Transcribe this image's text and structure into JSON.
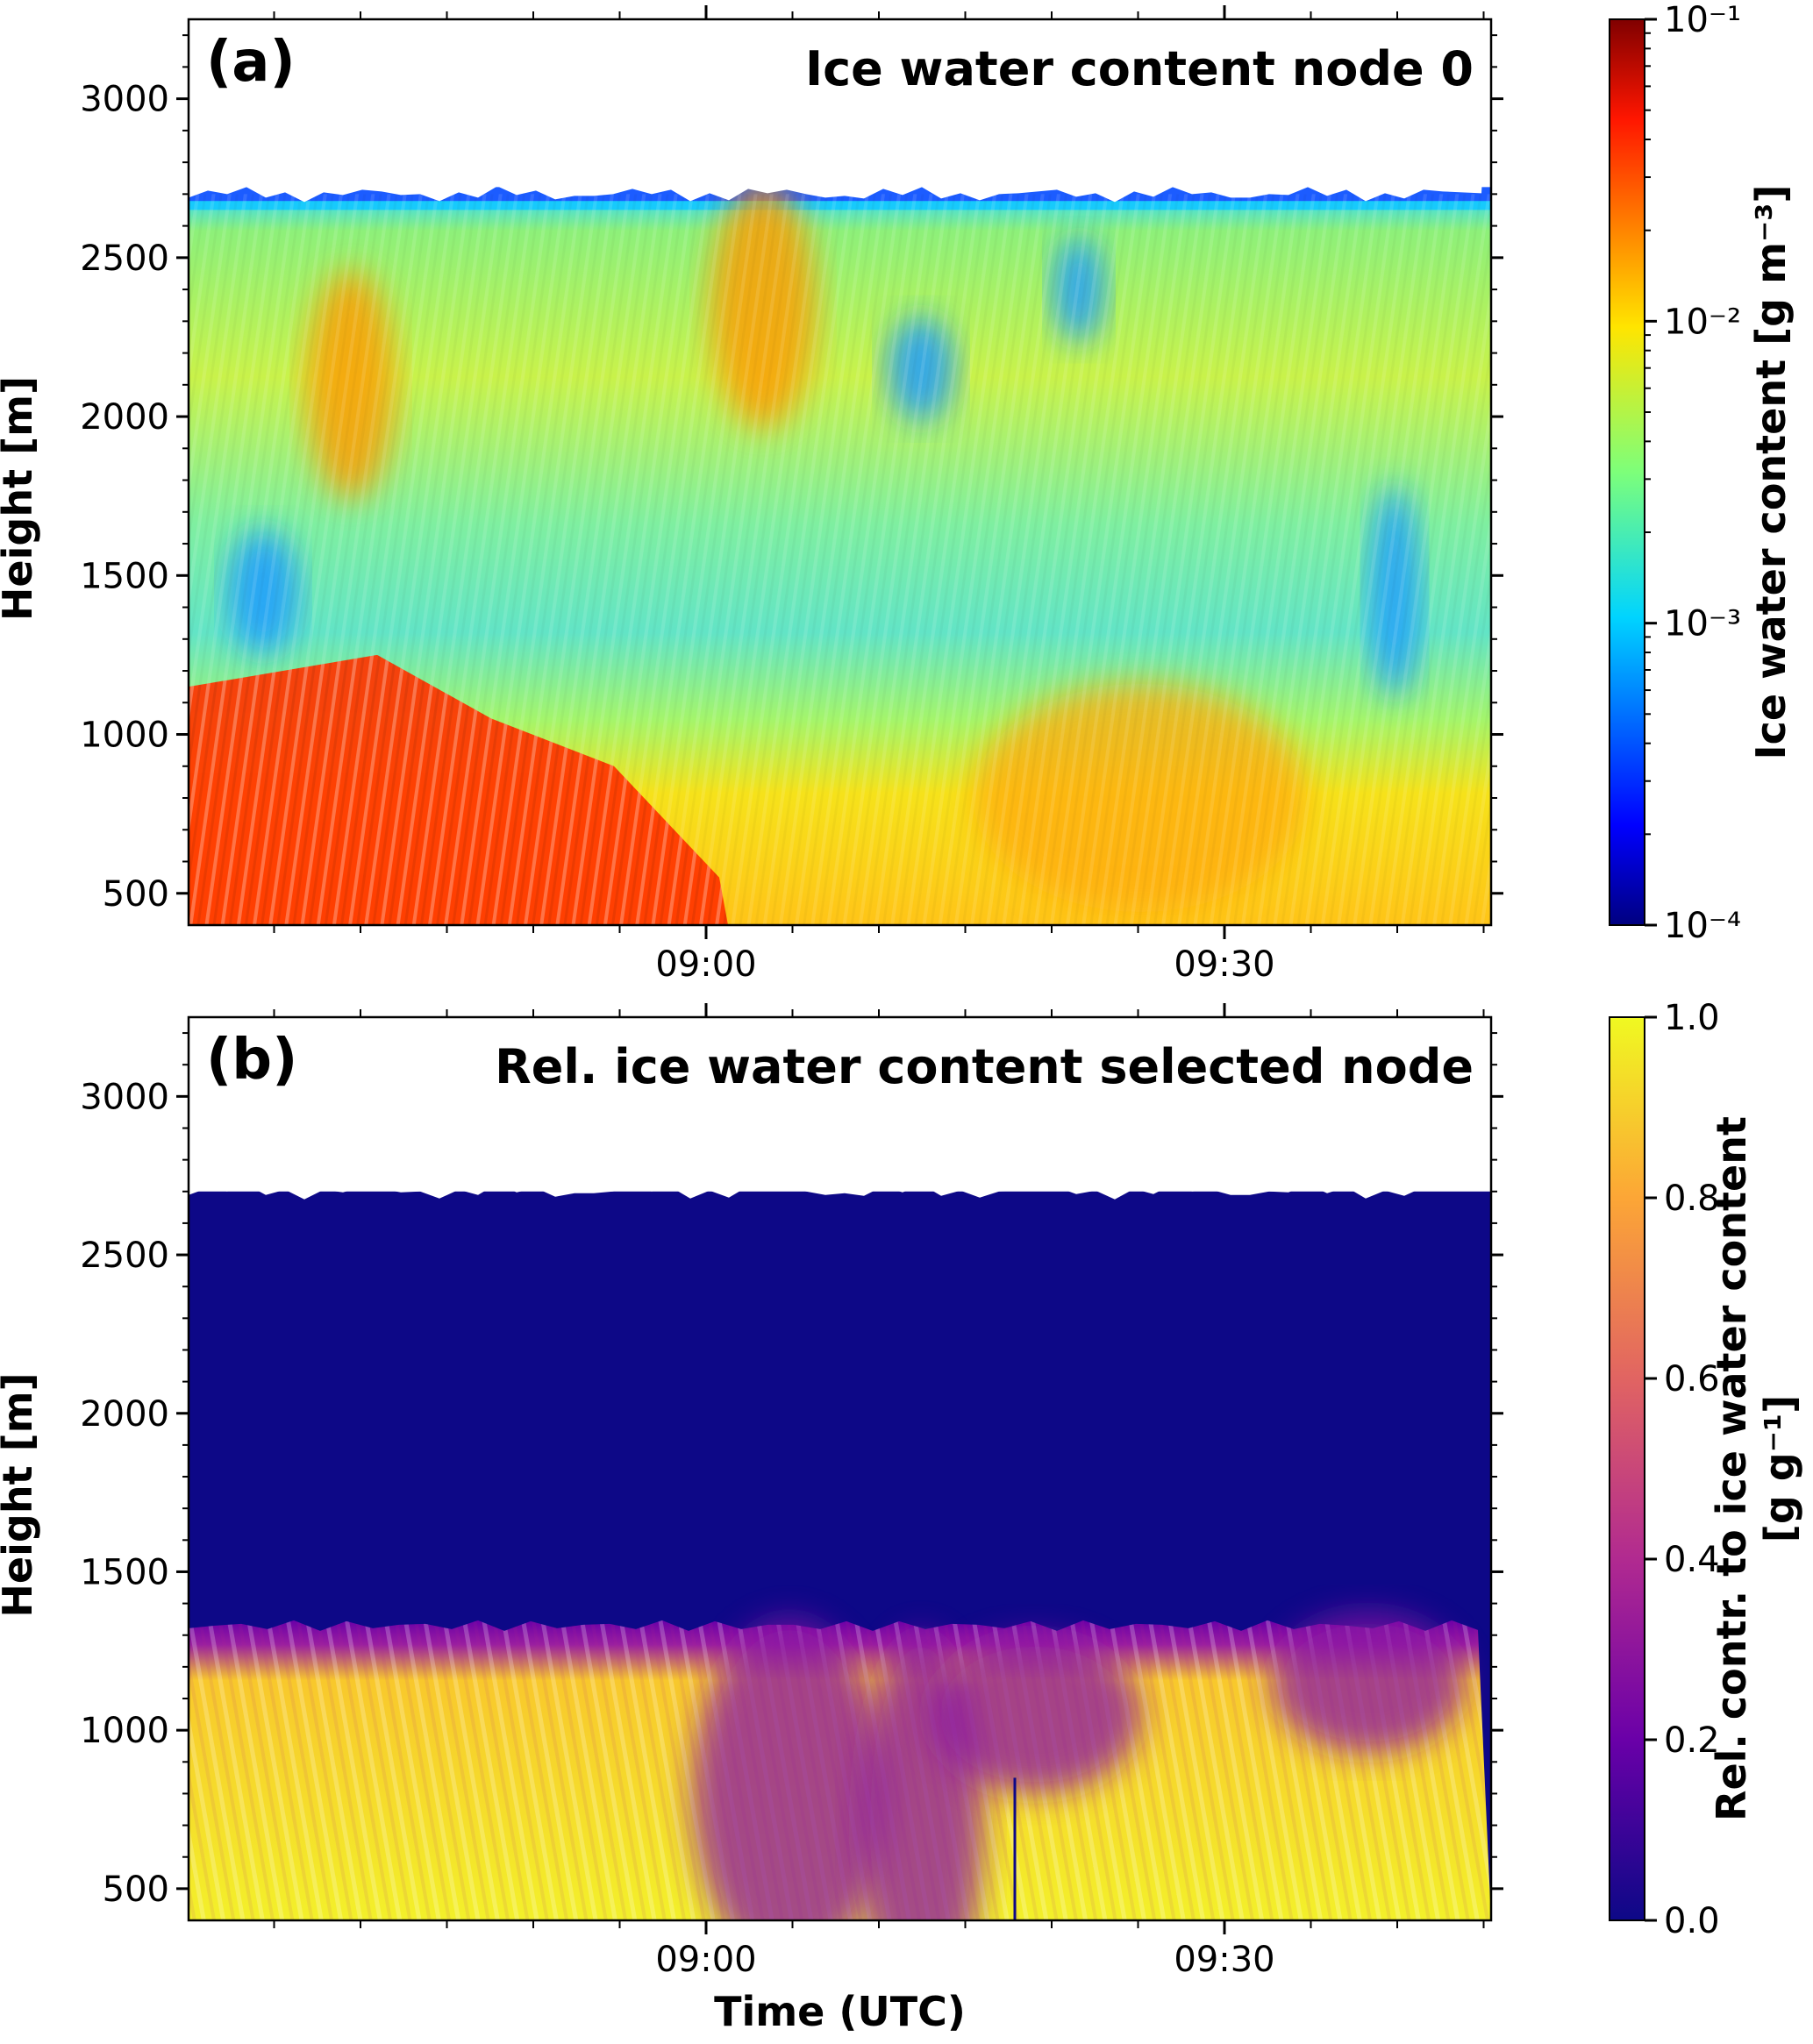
{
  "chart_data": [
    {
      "type": "heatmap",
      "panel_label": "(a)",
      "title": "Ice water content node 0",
      "xlabel": "",
      "ylabel": "Height [m]",
      "x_tick_labels": [
        "09:00",
        "09:30"
      ],
      "y_ticks": [
        500,
        1000,
        1500,
        2000,
        2500,
        3000
      ],
      "ylim": [
        400,
        3250
      ],
      "cloud_top_m": 2700,
      "colorbar": {
        "label": "Ice water content [g m⁻³]",
        "scale": "log",
        "range": [
          0.0001,
          0.1
        ],
        "tick_labels": [
          "10⁻⁴",
          "10⁻³",
          "10⁻²",
          "10⁻¹"
        ],
        "colormap": "jet"
      },
      "description_values": {
        "below_1000m_early": 0.04,
        "mid_layer_1200_2600m": 0.003,
        "top_layer_edge": 0.0003
      }
    },
    {
      "type": "heatmap",
      "panel_label": "(b)",
      "title": "Rel. ice water content selected node",
      "xlabel": "Time (UTC)",
      "ylabel": "Height [m]",
      "x_tick_labels": [
        "09:00",
        "09:30"
      ],
      "y_ticks": [
        500,
        1000,
        1500,
        2000,
        2500,
        3000
      ],
      "ylim": [
        400,
        3250
      ],
      "cloud_top_m": 2700,
      "colorbar": {
        "label_line1": "Rel. contr. to ice water content",
        "label_line2": "[g g⁻¹]",
        "scale": "linear",
        "range": [
          0.0,
          1.0
        ],
        "ticks": [
          "0.0",
          "0.2",
          "0.4",
          "0.6",
          "0.8",
          "1.0"
        ],
        "colormap": "plasma"
      },
      "description_values": {
        "above_1300m": 0.0,
        "transition_1100_1350m": 0.25,
        "below_1100m": 0.95
      }
    }
  ]
}
